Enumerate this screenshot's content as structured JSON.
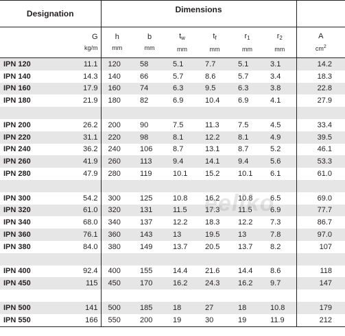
{
  "header": {
    "designation": "Designation",
    "dimensions": "Dimensions"
  },
  "units": {
    "G": {
      "sym": "G",
      "unit": "kg/m"
    },
    "h": {
      "sym": "h",
      "unit": "mm"
    },
    "b": {
      "sym": "b",
      "unit": "mm"
    },
    "tw": {
      "sym": "t",
      "sub": "w",
      "unit": "mm"
    },
    "tf": {
      "sym": "t",
      "sub": "f",
      "unit": "mm"
    },
    "r1": {
      "sym": "r",
      "sub": "1",
      "unit": "mm"
    },
    "r2": {
      "sym": "r",
      "sub": "2",
      "unit": "mm"
    },
    "A": {
      "sym": "A",
      "unit": "cm",
      "sup": "2"
    }
  },
  "groups": [
    [
      [
        "IPN 120",
        "11.1",
        "120",
        "58",
        "5.1",
        "7.7",
        "5.1",
        "3.1",
        "14.2"
      ],
      [
        "IPN 140",
        "14.3",
        "140",
        "66",
        "5.7",
        "8.6",
        "5.7",
        "3.4",
        "18.3"
      ],
      [
        "IPN 160",
        "17.9",
        "160",
        "74",
        "6.3",
        "9.5",
        "6.3",
        "3.8",
        "22.8"
      ],
      [
        "IPN 180",
        "21.9",
        "180",
        "82",
        "6.9",
        "10.4",
        "6.9",
        "4.1",
        "27.9"
      ]
    ],
    [
      [
        "IPN 200",
        "26.2",
        "200",
        "90",
        "7.5",
        "11.3",
        "7.5",
        "4.5",
        "33.4"
      ],
      [
        "IPN 220",
        "31.1",
        "220",
        "98",
        "8.1",
        "12.2",
        "8.1",
        "4.9",
        "39.5"
      ],
      [
        "IPN 240",
        "36.2",
        "240",
        "106",
        "8.7",
        "13.1",
        "8.7",
        "5.2",
        "46.1"
      ],
      [
        "IPN 260",
        "41.9",
        "260",
        "113",
        "9.4",
        "14.1",
        "9.4",
        "5.6",
        "53.3"
      ],
      [
        "IPN 280",
        "47.9",
        "280",
        "119",
        "10.1",
        "15.2",
        "10.1",
        "6.1",
        "61.0"
      ]
    ],
    [
      [
        "IPN 300",
        "54.2",
        "300",
        "125",
        "10.8",
        "16.2",
        "10.8",
        "6.5",
        "69.0"
      ],
      [
        "IPN 320",
        "61.0",
        "320",
        "131",
        "11.5",
        "17.3",
        "11.5",
        "6.9",
        "77.7"
      ],
      [
        "IPN 340",
        "68.0",
        "340",
        "137",
        "12.2",
        "18.3",
        "12.2",
        "7.3",
        "86.7"
      ],
      [
        "IPN 360",
        "76.1",
        "360",
        "143",
        "13",
        "19.5",
        "13",
        "7.8",
        "97.0"
      ],
      [
        "IPN 380",
        "84.0",
        "380",
        "149",
        "13.7",
        "20.5",
        "13.7",
        "8.2",
        "107"
      ]
    ],
    [
      [
        "IPN 400",
        "92.4",
        "400",
        "155",
        "14.4",
        "21.6",
        "14.4",
        "8.6",
        "118"
      ],
      [
        "IPN 450",
        "115",
        "450",
        "170",
        "16.2",
        "24.3",
        "16.2",
        "9.7",
        "147"
      ]
    ],
    [
      [
        "IPN 500",
        "141",
        "500",
        "185",
        "18",
        "27",
        "18",
        "10.8",
        "179"
      ],
      [
        "IPN 550",
        "166",
        "550",
        "200",
        "19",
        "30",
        "19",
        "11.9",
        "212"
      ]
    ]
  ],
  "watermark": "eeliko"
}
